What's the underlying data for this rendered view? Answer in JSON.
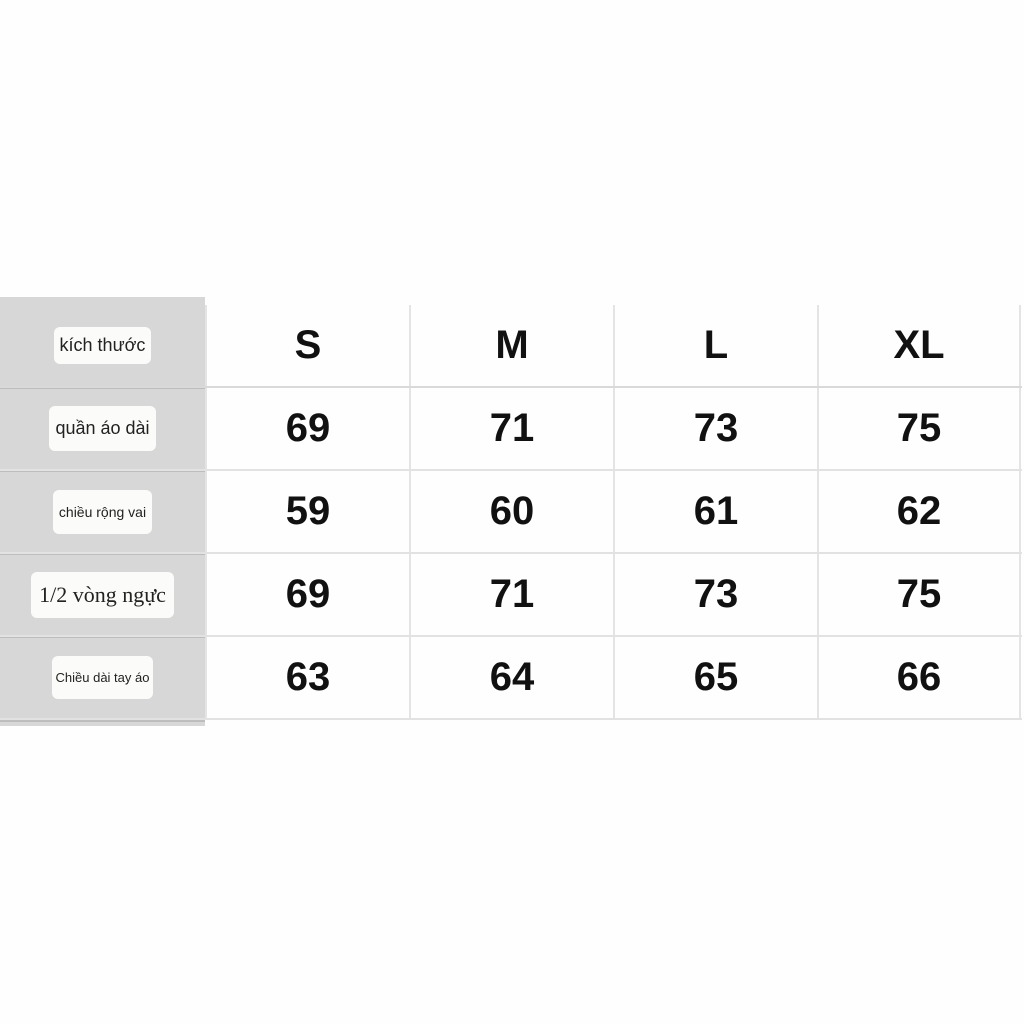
{
  "table": {
    "header_label": "kích thước",
    "sizes": [
      "S",
      "M",
      "L",
      "XL"
    ],
    "rows": [
      {
        "label": "quần áo dài",
        "values": [
          "69",
          "71",
          "73",
          "75"
        ]
      },
      {
        "label": "chiều rộng vai",
        "values": [
          "59",
          "60",
          "61",
          "62"
        ]
      },
      {
        "label": "1/2 vòng ngực",
        "values": [
          "69",
          "71",
          "73",
          "75"
        ]
      },
      {
        "label": "Chiều dài tay áo",
        "values": [
          "63",
          "64",
          "65",
          "66"
        ]
      }
    ]
  },
  "colors": {
    "label_column": "#d7d7d7",
    "chip": "#fbfbf9",
    "text": "#111111"
  }
}
